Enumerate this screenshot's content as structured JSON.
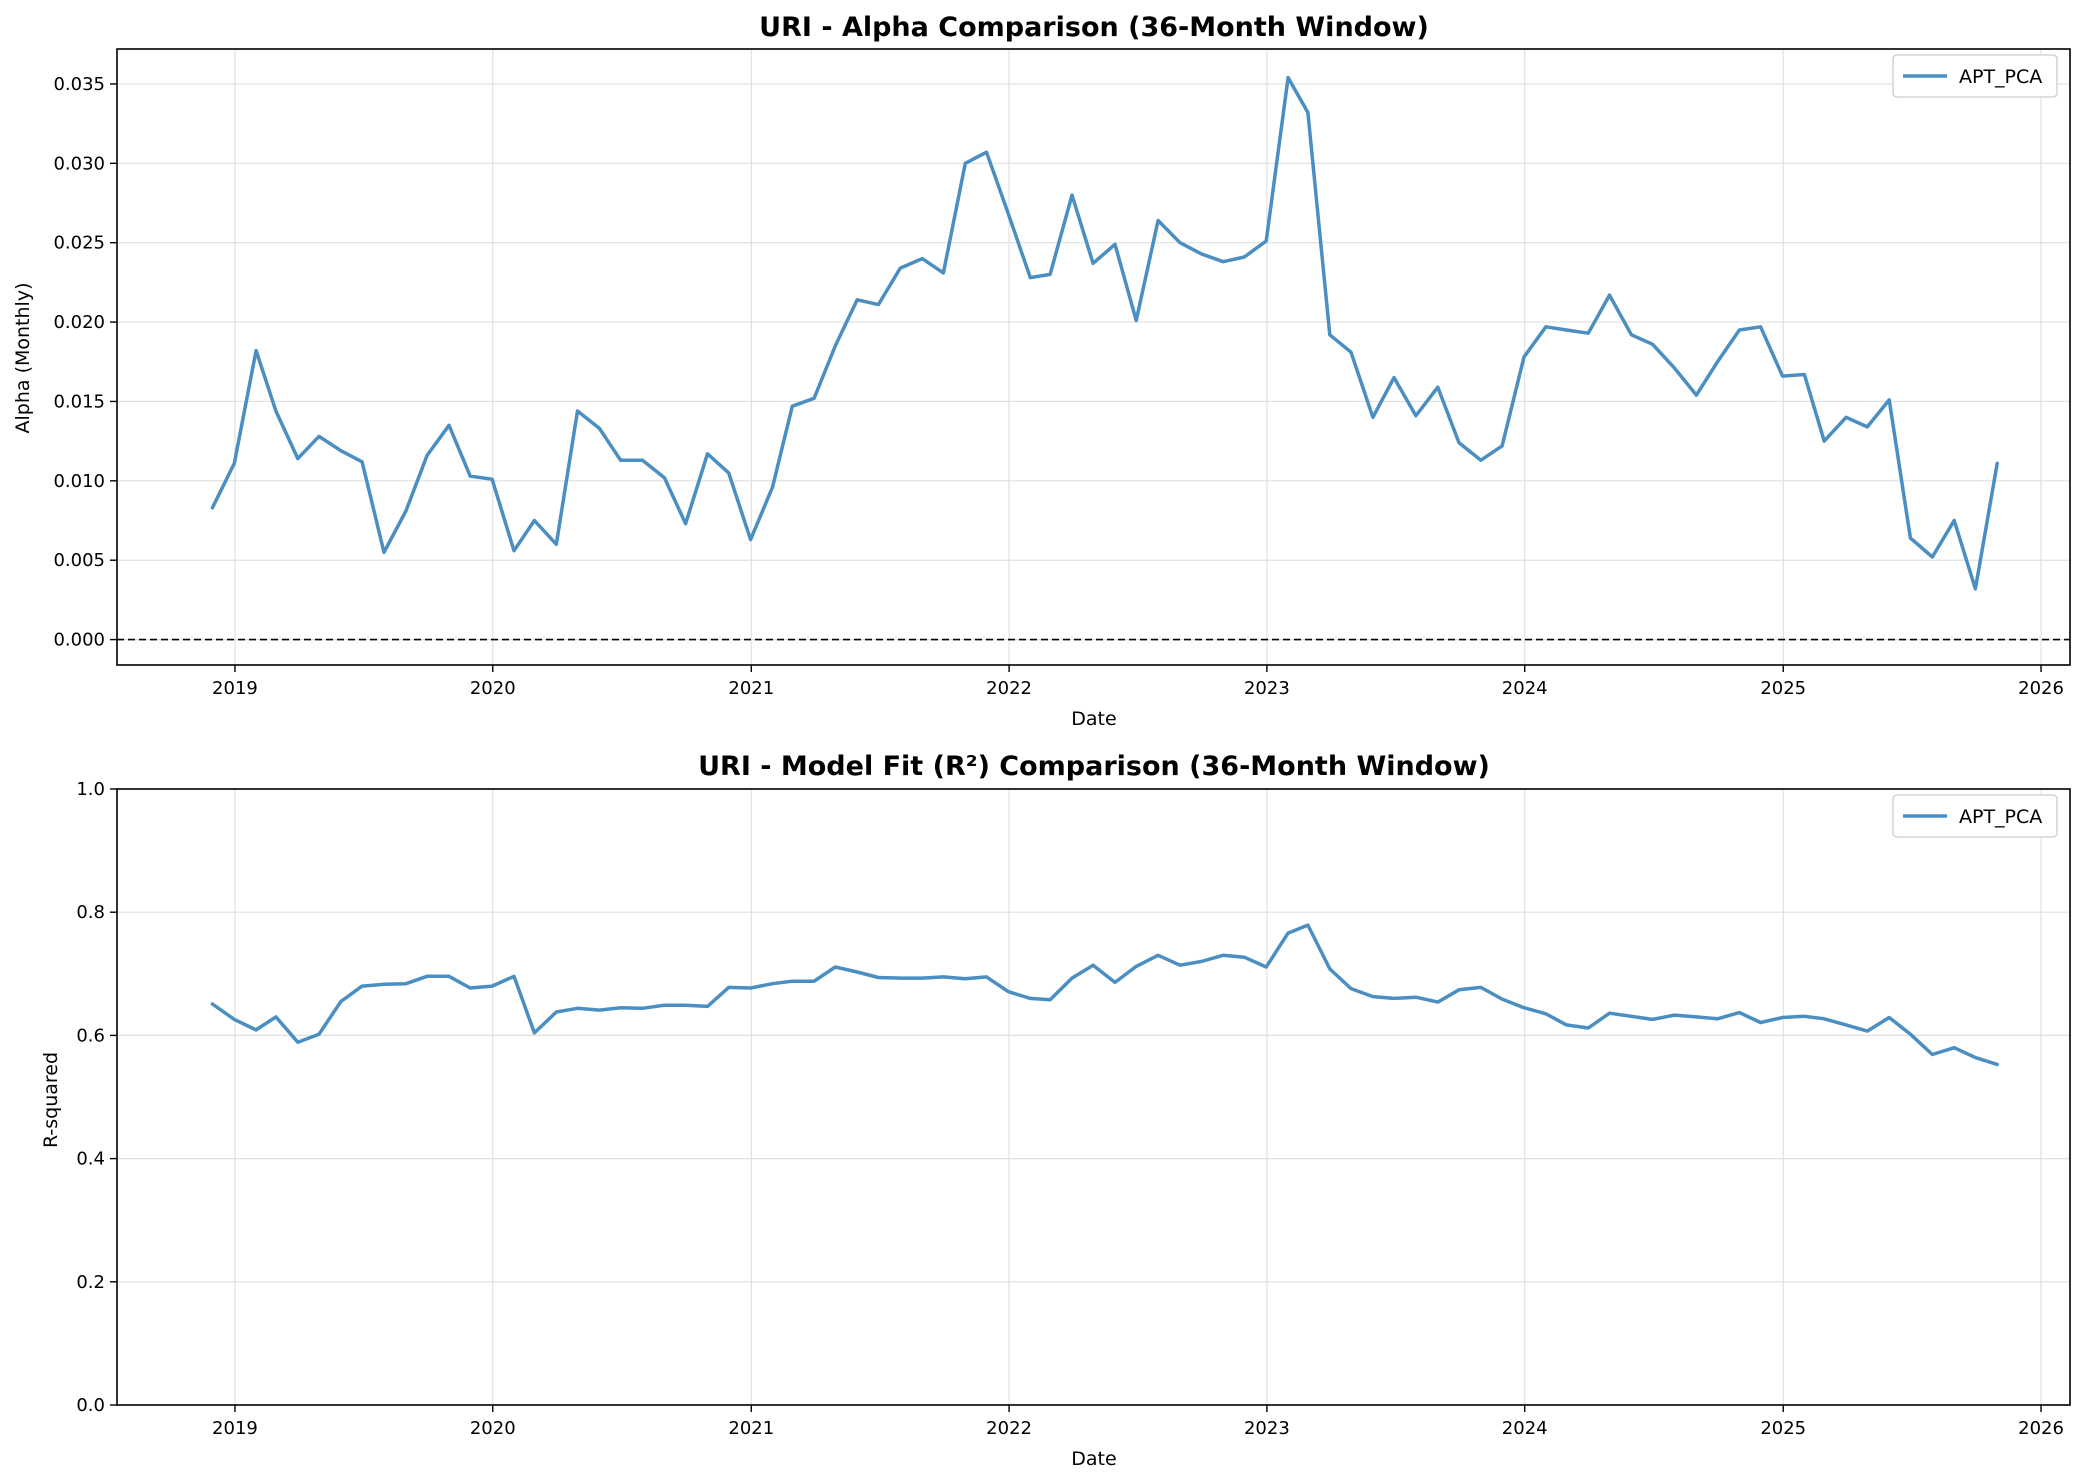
{
  "colors": {
    "series": "#4a8ec2",
    "grid": "#e0e0e0",
    "axis": "#000000",
    "zero_line": "#000000"
  },
  "chart_data": [
    {
      "type": "line",
      "title": "URI - Alpha Comparison (36-Month Window)",
      "xlabel": "Date",
      "ylabel": "Alpha (Monthly)",
      "x_ticks": [
        "2019",
        "2020",
        "2021",
        "2022",
        "2023",
        "2024",
        "2025",
        "2026"
      ],
      "y_ticks": [
        "0.000",
        "0.005",
        "0.010",
        "0.015",
        "0.020",
        "0.025",
        "0.030",
        "0.035"
      ],
      "ylim": [
        -0.0016,
        0.0372
      ],
      "xlim": [
        "2018-07-18",
        "2026-02-11"
      ],
      "grid": true,
      "legend": "top-right",
      "reference_line": 0,
      "x": [
        "2018-11-30",
        "2018-12-31",
        "2019-01-31",
        "2019-02-28",
        "2019-03-31",
        "2019-04-30",
        "2019-05-31",
        "2019-06-30",
        "2019-07-31",
        "2019-08-31",
        "2019-09-30",
        "2019-10-31",
        "2019-11-30",
        "2019-12-31",
        "2020-01-31",
        "2020-02-29",
        "2020-03-31",
        "2020-04-30",
        "2020-05-31",
        "2020-06-30",
        "2020-07-31",
        "2020-08-31",
        "2020-09-30",
        "2020-10-31",
        "2020-11-30",
        "2020-12-31",
        "2021-01-31",
        "2021-02-28",
        "2021-03-31",
        "2021-04-30",
        "2021-05-31",
        "2021-06-30",
        "2021-07-31",
        "2021-08-31",
        "2021-09-30",
        "2021-10-31",
        "2021-11-30",
        "2021-12-31",
        "2022-01-31",
        "2022-02-28",
        "2022-03-31",
        "2022-04-30",
        "2022-05-31",
        "2022-06-30",
        "2022-07-31",
        "2022-08-31",
        "2022-09-30",
        "2022-10-31",
        "2022-11-30",
        "2022-12-31",
        "2023-01-31",
        "2023-02-28",
        "2023-03-31",
        "2023-04-30",
        "2023-05-31",
        "2023-06-30",
        "2023-07-31",
        "2023-08-31",
        "2023-09-30",
        "2023-10-31",
        "2023-11-30",
        "2023-12-31",
        "2024-01-31",
        "2024-02-29",
        "2024-03-31",
        "2024-04-30",
        "2024-05-31",
        "2024-06-30",
        "2024-07-31",
        "2024-08-31",
        "2024-09-30",
        "2024-10-31",
        "2024-11-30",
        "2024-12-31",
        "2025-01-31",
        "2025-02-28",
        "2025-03-31",
        "2025-04-30",
        "2025-05-31",
        "2025-06-30",
        "2025-07-31",
        "2025-08-31",
        "2025-09-30",
        "2025-10-31"
      ],
      "series": [
        {
          "name": "APT_PCA",
          "values": [
            0.0083,
            0.0111,
            0.0182,
            0.0144,
            0.0114,
            0.0128,
            0.0119,
            0.0112,
            0.0055,
            0.0081,
            0.0116,
            0.0135,
            0.0103,
            0.0101,
            0.0056,
            0.0075,
            0.006,
            0.0144,
            0.0133,
            0.0113,
            0.0113,
            0.0102,
            0.0073,
            0.0117,
            0.0105,
            0.0063,
            0.0096,
            0.0147,
            0.0152,
            0.0185,
            0.0214,
            0.0211,
            0.0234,
            0.024,
            0.0231,
            0.03,
            0.0307,
            0.0268,
            0.0228,
            0.023,
            0.028,
            0.0237,
            0.0249,
            0.0201,
            0.0264,
            0.025,
            0.0243,
            0.0238,
            0.0241,
            0.0251,
            0.0354,
            0.0332,
            0.0192,
            0.0181,
            0.014,
            0.0165,
            0.0141,
            0.0159,
            0.0124,
            0.0113,
            0.0122,
            0.0178,
            0.0197,
            0.0195,
            0.0193,
            0.0217,
            0.0192,
            0.0186,
            0.0171,
            0.0154,
            0.0175,
            0.0195,
            0.0197,
            0.0166,
            0.0167,
            0.0125,
            0.014,
            0.0134,
            0.0151,
            0.0064,
            0.0052,
            0.0075,
            0.0032,
            0.0111
          ]
        }
      ]
    },
    {
      "type": "line",
      "title": "URI - Model Fit (R²) Comparison (36-Month Window)",
      "xlabel": "Date",
      "ylabel": "R-squared",
      "x_ticks": [
        "2019",
        "2020",
        "2021",
        "2022",
        "2023",
        "2024",
        "2025",
        "2026"
      ],
      "y_ticks": [
        "0.0",
        "0.2",
        "0.4",
        "0.6",
        "0.8",
        "1.0"
      ],
      "ylim": [
        0,
        1
      ],
      "xlim": [
        "2018-07-18",
        "2026-02-11"
      ],
      "grid": true,
      "legend": "top-right",
      "x": [
        "2018-11-30",
        "2018-12-31",
        "2019-01-31",
        "2019-02-28",
        "2019-03-31",
        "2019-04-30",
        "2019-05-31",
        "2019-06-30",
        "2019-07-31",
        "2019-08-31",
        "2019-09-30",
        "2019-10-31",
        "2019-11-30",
        "2019-12-31",
        "2020-01-31",
        "2020-02-29",
        "2020-03-31",
        "2020-04-30",
        "2020-05-31",
        "2020-06-30",
        "2020-07-31",
        "2020-08-31",
        "2020-09-30",
        "2020-10-31",
        "2020-11-30",
        "2020-12-31",
        "2021-01-31",
        "2021-02-28",
        "2021-03-31",
        "2021-04-30",
        "2021-05-31",
        "2021-06-30",
        "2021-07-31",
        "2021-08-31",
        "2021-09-30",
        "2021-10-31",
        "2021-11-30",
        "2021-12-31",
        "2022-01-31",
        "2022-02-28",
        "2022-03-31",
        "2022-04-30",
        "2022-05-31",
        "2022-06-30",
        "2022-07-31",
        "2022-08-31",
        "2022-09-30",
        "2022-10-31",
        "2022-11-30",
        "2022-12-31",
        "2023-01-31",
        "2023-02-28",
        "2023-03-31",
        "2023-04-30",
        "2023-05-31",
        "2023-06-30",
        "2023-07-31",
        "2023-08-31",
        "2023-09-30",
        "2023-10-31",
        "2023-11-30",
        "2023-12-31",
        "2024-01-31",
        "2024-02-29",
        "2024-03-31",
        "2024-04-30",
        "2024-05-31",
        "2024-06-30",
        "2024-07-31",
        "2024-08-31",
        "2024-09-30",
        "2024-10-31",
        "2024-11-30",
        "2024-12-31",
        "2025-01-31",
        "2025-02-28",
        "2025-03-31",
        "2025-04-30",
        "2025-05-31",
        "2025-06-30",
        "2025-07-31",
        "2025-08-31",
        "2025-09-30",
        "2025-10-31"
      ],
      "series": [
        {
          "name": "APT_PCA",
          "values": [
            0.651,
            0.626,
            0.609,
            0.63,
            0.589,
            0.602,
            0.655,
            0.68,
            0.683,
            0.684,
            0.696,
            0.696,
            0.677,
            0.68,
            0.696,
            0.604,
            0.638,
            0.644,
            0.641,
            0.645,
            0.644,
            0.649,
            0.649,
            0.647,
            0.678,
            0.677,
            0.684,
            0.688,
            0.688,
            0.711,
            0.703,
            0.694,
            0.693,
            0.693,
            0.695,
            0.692,
            0.695,
            0.671,
            0.66,
            0.658,
            0.693,
            0.714,
            0.686,
            0.712,
            0.73,
            0.714,
            0.72,
            0.73,
            0.727,
            0.711,
            0.766,
            0.779,
            0.708,
            0.676,
            0.663,
            0.66,
            0.662,
            0.654,
            0.674,
            0.678,
            0.659,
            0.645,
            0.635,
            0.617,
            0.612,
            0.636,
            0.631,
            0.626,
            0.633,
            0.63,
            0.627,
            0.637,
            0.621,
            0.629,
            0.631,
            0.627,
            0.617,
            0.607,
            0.629,
            0.602,
            0.569,
            0.58,
            0.564,
            0.553
          ]
        }
      ]
    }
  ]
}
